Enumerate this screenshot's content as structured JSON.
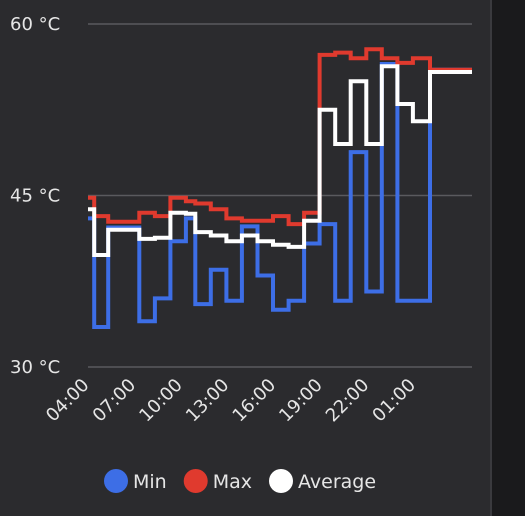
{
  "chart_data": {
    "type": "line",
    "interpolation": "step",
    "y_unit": "°C",
    "ylim": [
      30,
      60
    ],
    "y_ticks": [
      {
        "value": 60,
        "label": "60 °C"
      },
      {
        "value": 45,
        "label": "45 °C"
      },
      {
        "value": 30,
        "label": "30 °C"
      }
    ],
    "x_range": [
      4,
      28.7
    ],
    "x_ticks": [
      {
        "value": 4,
        "label": "04:00"
      },
      {
        "value": 7,
        "label": "07:00"
      },
      {
        "value": 10,
        "label": "10:00"
      },
      {
        "value": 13,
        "label": "13:00"
      },
      {
        "value": 16,
        "label": "16:00"
      },
      {
        "value": 19,
        "label": "19:00"
      },
      {
        "value": 22,
        "label": "22:00"
      },
      {
        "value": 25,
        "label": "01:00"
      }
    ],
    "grid": true,
    "legend_position": "bottom",
    "series": [
      {
        "name": "Min",
        "color": "#3d6ee6",
        "x": [
          4.0,
          4.4,
          5.3,
          6.3,
          7.3,
          8.3,
          9.3,
          10.3,
          10.9,
          11.9,
          12.9,
          13.9,
          14.9,
          15.9,
          16.9,
          17.9,
          18.9,
          19.9,
          20.9,
          21.9,
          22.9,
          23.9,
          24.9,
          26.0,
          27.0,
          28.7
        ],
        "y": [
          43.0,
          33.5,
          42.2,
          42.2,
          34.0,
          36.0,
          41.0,
          43.0,
          35.5,
          38.5,
          35.8,
          42.3,
          38.0,
          35.0,
          35.8,
          40.8,
          42.5,
          35.8,
          48.8,
          36.6,
          56.5,
          35.8,
          35.8,
          56.0,
          56.0,
          56.0
        ]
      },
      {
        "name": "Max",
        "color": "#e03a2e",
        "x": [
          4.0,
          4.4,
          5.3,
          6.3,
          7.3,
          8.3,
          9.3,
          10.3,
          10.9,
          11.9,
          12.9,
          13.9,
          14.9,
          15.9,
          16.9,
          17.9,
          18.9,
          19.9,
          20.9,
          21.9,
          22.9,
          23.9,
          24.9,
          26.0,
          27.0,
          28.7
        ],
        "y": [
          44.8,
          43.2,
          42.7,
          42.7,
          43.5,
          43.2,
          44.8,
          44.5,
          44.3,
          43.8,
          43.0,
          42.8,
          42.8,
          43.2,
          42.5,
          43.5,
          57.3,
          57.5,
          57.0,
          57.8,
          57.0,
          56.6,
          57.0,
          56.0,
          56.0,
          56.0
        ]
      },
      {
        "name": "Average",
        "color": "#ffffff",
        "x": [
          4.0,
          4.4,
          5.3,
          6.3,
          7.3,
          8.3,
          9.3,
          10.3,
          10.9,
          11.9,
          12.9,
          13.9,
          14.9,
          15.9,
          16.9,
          17.9,
          18.9,
          19.9,
          20.9,
          21.9,
          22.9,
          23.9,
          24.9,
          26.0,
          27.0,
          28.7
        ],
        "y": [
          43.8,
          39.8,
          42.0,
          42.0,
          41.2,
          41.3,
          43.5,
          43.4,
          41.8,
          41.5,
          41.0,
          41.5,
          41.0,
          40.7,
          40.5,
          42.8,
          52.5,
          49.5,
          55.0,
          49.5,
          56.3,
          53.0,
          51.5,
          55.8,
          55.8,
          55.8
        ]
      }
    ]
  }
}
